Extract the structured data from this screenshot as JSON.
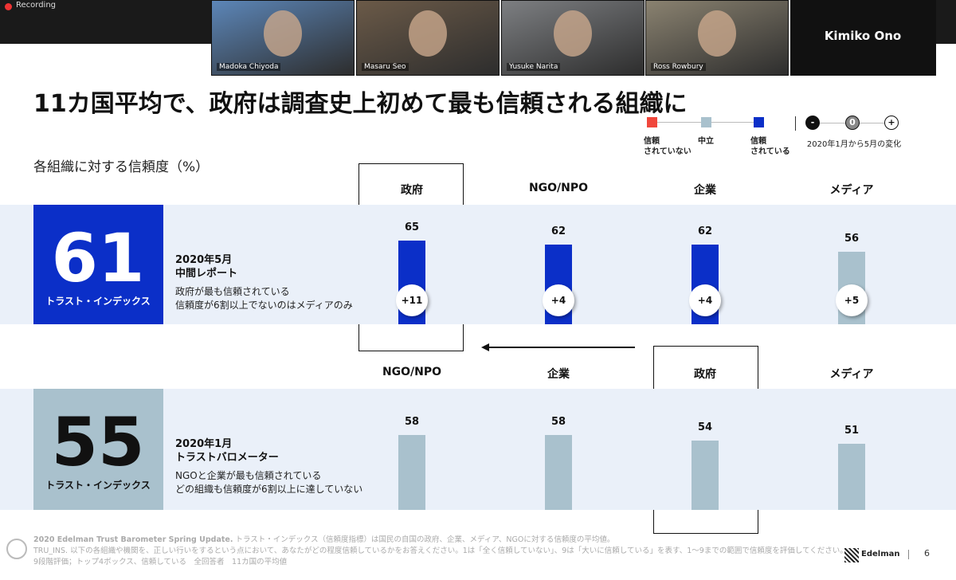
{
  "meeting": {
    "recording": "Recording",
    "participants": [
      "Madoka Chiyoda",
      "Masaru Seo",
      "Yusuke Narita",
      "Ross Rowbury"
    ],
    "speaker": "Kimiko Ono"
  },
  "slide": {
    "title": "11カ国平均で、政府は調査史上初めて最も信頼される組織に",
    "legend": {
      "items": [
        {
          "lines": [
            "信頼",
            "されていない"
          ],
          "color": "#f0473c"
        },
        {
          "lines": [
            "中立"
          ],
          "color": "#a9c1cd"
        },
        {
          "lines": [
            "信頼",
            "されている"
          ],
          "color": "#0b2fc8"
        }
      ],
      "change": {
        "marks": [
          "-",
          "0",
          "+"
        ],
        "label": "2020年1月から5月の変化"
      }
    },
    "subtitle": "各組織に対する信頼度（%）",
    "panels": [
      {
        "index": 61,
        "index_label": "トラスト・インデックス",
        "box_color": "#0b2fc8",
        "date": "2020年5月",
        "report": "中間レポート",
        "notes": [
          "政府が最も信頼されている",
          "信頼度が6割以上でないのはメディアのみ"
        ],
        "bars": [
          {
            "name": "政府",
            "value": 65,
            "change": "+11",
            "color": "#0b2fc8"
          },
          {
            "name": "NGO/NPO",
            "value": 62,
            "change": "+4",
            "color": "#0b2fc8"
          },
          {
            "name": "企業",
            "value": 62,
            "change": "+4",
            "color": "#0b2fc8"
          },
          {
            "name": "メディア",
            "value": 56,
            "change": "+5",
            "color": "#a9c1cd"
          }
        ]
      },
      {
        "index": 55,
        "index_label": "トラスト・インデックス",
        "box_color": "#a9c1cd",
        "date": "2020年1月",
        "report": "トラストバロメーター",
        "notes": [
          "NGOと企業が最も信頼されている",
          "どの組織も信頼度が6割以上に達していない"
        ],
        "bars": [
          {
            "name": "NGO/NPO",
            "value": 58,
            "color": "#a9c1cd"
          },
          {
            "name": "企業",
            "value": 58,
            "color": "#a9c1cd"
          },
          {
            "name": "政府",
            "value": 54,
            "color": "#a9c1cd"
          },
          {
            "name": "メディア",
            "value": 51,
            "color": "#a9c1cd"
          }
        ]
      }
    ],
    "footer": {
      "lead": "2020 Edelman Trust Barometer Spring Update.",
      "lines": [
        " トラスト・インデックス（信頼度指標）は国民の自国の政府、企業、メディア、NGOに対する信頼度の平均値。",
        "TRU_INS. 以下の各組織や機関を、正しい行いをするという点において、あなたがどの程度信頼しているかをお答えください。1は「全く信頼していない」、9は「大いに信頼している」を表す、1〜9までの範囲で信頼度を評価してください。",
        "9段階評価；トップ4ボックス、信頼している　全回答者　11カ国の平均値"
      ]
    },
    "brand": "Edelman",
    "page": 6
  }
}
